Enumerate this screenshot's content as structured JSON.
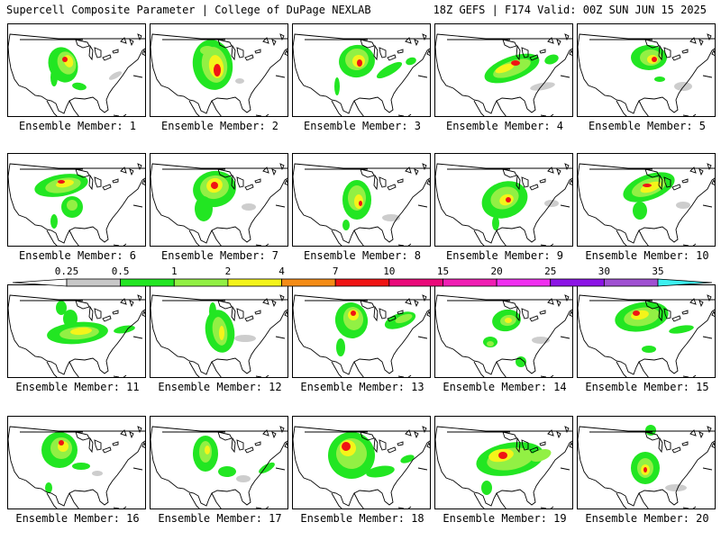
{
  "header": {
    "left": "Supercell Composite Parameter | College of DuPage NEXLAB",
    "right": "18Z GEFS | F174 Valid: 00Z SUN JUN 15 2025"
  },
  "panels": [
    {
      "label": "Ensemble Member: 1"
    },
    {
      "label": "Ensemble Member: 2"
    },
    {
      "label": "Ensemble Member: 3"
    },
    {
      "label": "Ensemble Member: 4"
    },
    {
      "label": "Ensemble Member: 5"
    },
    {
      "label": "Ensemble Member: 6"
    },
    {
      "label": "Ensemble Member: 7"
    },
    {
      "label": "Ensemble Member: 8"
    },
    {
      "label": "Ensemble Member: 9"
    },
    {
      "label": "Ensemble Member: 10"
    },
    {
      "label": "Ensemble Member: 11"
    },
    {
      "label": "Ensemble Member: 12"
    },
    {
      "label": "Ensemble Member: 13"
    },
    {
      "label": "Ensemble Member: 14"
    },
    {
      "label": "Ensemble Member: 15"
    },
    {
      "label": "Ensemble Member: 16"
    },
    {
      "label": "Ensemble Member: 17"
    },
    {
      "label": "Ensemble Member: 18"
    },
    {
      "label": "Ensemble Member: 19"
    },
    {
      "label": "Ensemble Member: 20"
    }
  ],
  "colorbar": {
    "labels": [
      "0.25",
      "0.5",
      "1",
      "2",
      "4",
      "7",
      "10",
      "15",
      "20",
      "25",
      "30",
      "35"
    ],
    "colors": [
      "#c8c8c8",
      "#22e622",
      "#92f044",
      "#f4f41a",
      "#f48c16",
      "#f01414",
      "#ea0a7a",
      "#f01eb4",
      "#f030f0",
      "#8c14e6",
      "#a050d2",
      "#3cf0f0"
    ]
  }
}
